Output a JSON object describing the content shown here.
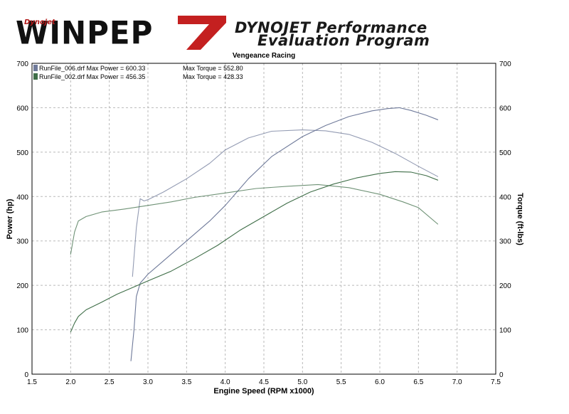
{
  "header": {
    "logo_tag": "Dynojet",
    "logo_text": "WINPEP",
    "program_line1": "DYNOJET Performance",
    "program_line2": "Evaluation Program"
  },
  "colors": {
    "run006": "#6f7a9a",
    "run002": "#3f6e48",
    "grid": "#b9b9b9",
    "logo_red": "#c42020"
  },
  "chart_data": {
    "type": "line",
    "title": "Vengeance Racing",
    "xlabel": "Engine Speed (RPM x1000)",
    "ylabel": "Power (hp)",
    "y2label": "Torque (ft-lbs)",
    "xlim": [
      1.5,
      7.5
    ],
    "ylim": [
      0,
      700
    ],
    "y2lim": [
      0,
      700
    ],
    "grid": true,
    "legend_placement": "top-left",
    "x_ticks": [
      "1.5",
      "2.0",
      "2.5",
      "3.0",
      "3.5",
      "4.0",
      "4.5",
      "5.0",
      "5.5",
      "6.0",
      "6.5",
      "7.0",
      "7.5"
    ],
    "y_ticks": [
      "0",
      "100",
      "200",
      "300",
      "400",
      "500",
      "600",
      "700"
    ],
    "legend": [
      {
        "text": "RunFile_006.drf Max Power = 600.33",
        "torque_text": "Max Torque = 552.80"
      },
      {
        "text": "RunFile_002.drf Max Power = 456.35",
        "torque_text": "Max Torque = 428.33"
      }
    ],
    "series": [
      {
        "name": "RunFile_006.drf",
        "measure": "power",
        "color_key": "run006",
        "x": [
          2.78,
          2.82,
          2.85,
          2.9,
          2.95,
          3.0,
          3.2,
          3.5,
          3.8,
          4.0,
          4.3,
          4.6,
          5.0,
          5.3,
          5.6,
          5.9,
          6.1,
          6.25,
          6.4,
          6.6,
          6.75
        ],
        "y": [
          30,
          100,
          175,
          205,
          215,
          225,
          255,
          300,
          345,
          380,
          440,
          490,
          535,
          560,
          580,
          593,
          598,
          600,
          594,
          583,
          573
        ]
      },
      {
        "name": "RunFile_006.drf",
        "measure": "torque",
        "color_key": "run006",
        "x": [
          2.8,
          2.85,
          2.9,
          2.95,
          3.0,
          3.2,
          3.5,
          3.8,
          4.0,
          4.3,
          4.6,
          5.0,
          5.3,
          5.6,
          5.9,
          6.2,
          6.5,
          6.75
        ],
        "y": [
          220,
          330,
          395,
          390,
          393,
          410,
          440,
          475,
          505,
          532,
          547,
          550,
          548,
          540,
          522,
          497,
          468,
          445
        ]
      },
      {
        "name": "RunFile_002.drf",
        "measure": "power",
        "color_key": "run002",
        "x": [
          2.0,
          2.05,
          2.1,
          2.2,
          2.4,
          2.6,
          2.8,
          3.0,
          3.3,
          3.6,
          3.9,
          4.2,
          4.5,
          4.8,
          5.1,
          5.4,
          5.7,
          6.0,
          6.2,
          6.4,
          6.6,
          6.75
        ],
        "y": [
          95,
          115,
          130,
          145,
          162,
          180,
          195,
          210,
          232,
          260,
          290,
          325,
          355,
          385,
          410,
          428,
          442,
          452,
          456,
          455,
          447,
          437
        ]
      },
      {
        "name": "RunFile_002.drf",
        "measure": "torque",
        "color_key": "run002",
        "x": [
          2.0,
          2.05,
          2.1,
          2.2,
          2.4,
          2.7,
          3.0,
          3.3,
          3.6,
          4.0,
          4.4,
          4.8,
          5.2,
          5.6,
          6.0,
          6.3,
          6.5,
          6.75
        ],
        "y": [
          270,
          320,
          345,
          355,
          365,
          372,
          380,
          388,
          398,
          408,
          418,
          423,
          427,
          420,
          405,
          388,
          375,
          338
        ]
      }
    ]
  }
}
